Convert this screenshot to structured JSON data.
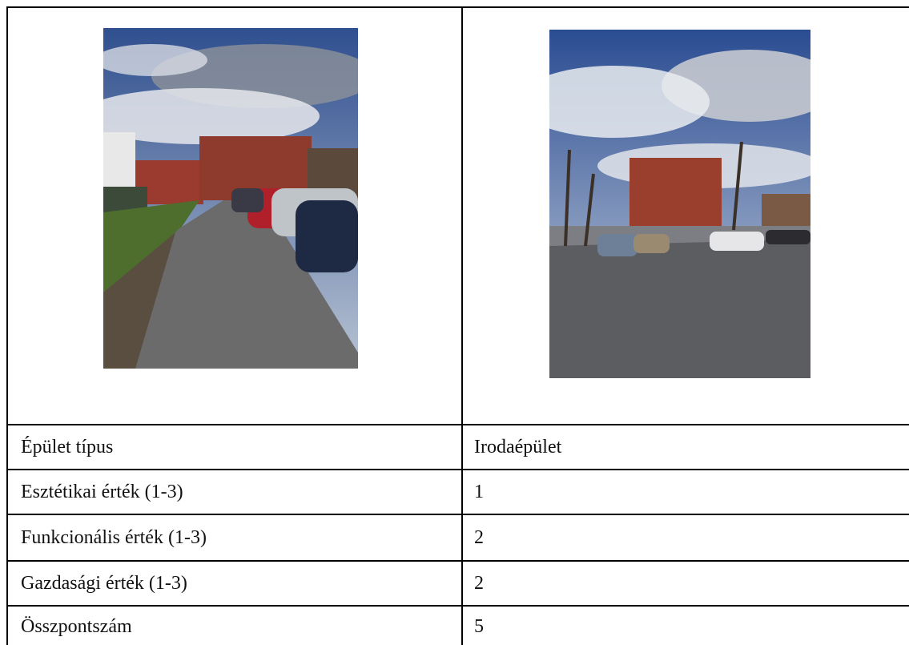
{
  "table": {
    "rows": [
      [
        "Épület típus",
        "Irodaépület"
      ],
      [
        "Esztétikai érték (1-3)",
        "1"
      ],
      [
        "Funkcionális érték (1-3)",
        "2"
      ],
      [
        "Gazdasági érték (1-3)",
        "2"
      ],
      [
        "Összpontszám",
        "5"
      ]
    ]
  }
}
